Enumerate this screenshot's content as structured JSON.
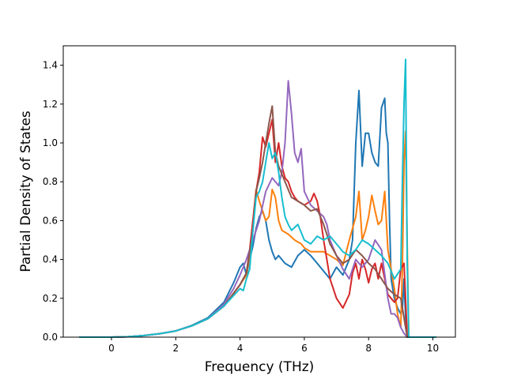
{
  "chart_data": {
    "type": "line",
    "title": "",
    "xlabel": "Frequency (THz)",
    "ylabel": "Partial Density of States",
    "xlim": [
      -1.5,
      10.7
    ],
    "ylim": [
      0.0,
      1.5
    ],
    "xticks": [
      0,
      2,
      4,
      6,
      8,
      10
    ],
    "yticks": [
      0.0,
      0.2,
      0.4,
      0.6,
      0.8,
      1.0,
      1.2,
      1.4
    ],
    "xtick_labels": [
      "0",
      "2",
      "4",
      "6",
      "8",
      "10"
    ],
    "ytick_labels": [
      "0.0",
      "0.2",
      "0.4",
      "0.6",
      "0.8",
      "1.0",
      "1.2",
      "1.4"
    ],
    "grid": false,
    "legend": "none",
    "series": [
      {
        "color": "#1f77b4",
        "points": [
          [
            -1,
            0
          ],
          [
            0,
            0
          ],
          [
            0.5,
            0.002
          ],
          [
            1,
            0.008
          ],
          [
            1.5,
            0.018
          ],
          [
            2,
            0.032
          ],
          [
            2.5,
            0.06
          ],
          [
            3,
            0.1
          ],
          [
            3.5,
            0.18
          ],
          [
            3.8,
            0.28
          ],
          [
            4,
            0.36
          ],
          [
            4.1,
            0.38
          ],
          [
            4.2,
            0.32
          ],
          [
            4.3,
            0.4
          ],
          [
            4.4,
            0.47
          ],
          [
            4.5,
            0.56
          ],
          [
            4.6,
            0.62
          ],
          [
            4.7,
            0.65
          ],
          [
            4.8,
            0.6
          ],
          [
            4.9,
            0.5
          ],
          [
            5,
            0.44
          ],
          [
            5.1,
            0.4
          ],
          [
            5.2,
            0.42
          ],
          [
            5.4,
            0.38
          ],
          [
            5.6,
            0.36
          ],
          [
            5.8,
            0.42
          ],
          [
            6,
            0.45
          ],
          [
            6.2,
            0.42
          ],
          [
            6.4,
            0.38
          ],
          [
            6.6,
            0.34
          ],
          [
            6.8,
            0.3
          ],
          [
            7,
            0.36
          ],
          [
            7.2,
            0.32
          ],
          [
            7.4,
            0.4
          ],
          [
            7.5,
            0.5
          ],
          [
            7.6,
            1.0
          ],
          [
            7.7,
            1.27
          ],
          [
            7.8,
            0.88
          ],
          [
            7.9,
            1.05
          ],
          [
            8,
            1.05
          ],
          [
            8.1,
            0.95
          ],
          [
            8.2,
            0.9
          ],
          [
            8.3,
            0.88
          ],
          [
            8.4,
            1.18
          ],
          [
            8.5,
            1.23
          ],
          [
            8.55,
            1.05
          ],
          [
            8.6,
            1.0
          ],
          [
            8.65,
            0.6
          ],
          [
            8.7,
            0.3
          ],
          [
            8.8,
            0.2
          ],
          [
            8.9,
            0.15
          ],
          [
            9,
            0.12
          ],
          [
            9.05,
            0.14
          ],
          [
            9.1,
            0.3
          ],
          [
            9.15,
            0.1
          ],
          [
            9.2,
            0
          ],
          [
            10.1,
            0
          ]
        ]
      },
      {
        "color": "#ff7f0e",
        "points": [
          [
            -1,
            0
          ],
          [
            0,
            0
          ],
          [
            0.5,
            0.002
          ],
          [
            1,
            0.008
          ],
          [
            1.5,
            0.018
          ],
          [
            2,
            0.032
          ],
          [
            2.5,
            0.058
          ],
          [
            3,
            0.095
          ],
          [
            3.5,
            0.16
          ],
          [
            4,
            0.27
          ],
          [
            4.2,
            0.32
          ],
          [
            4.3,
            0.42
          ],
          [
            4.4,
            0.6
          ],
          [
            4.5,
            0.76
          ],
          [
            4.6,
            0.7
          ],
          [
            4.7,
            0.65
          ],
          [
            4.8,
            0.6
          ],
          [
            4.9,
            0.62
          ],
          [
            5,
            0.76
          ],
          [
            5.1,
            0.72
          ],
          [
            5.2,
            0.6
          ],
          [
            5.3,
            0.55
          ],
          [
            5.5,
            0.53
          ],
          [
            5.7,
            0.5
          ],
          [
            5.9,
            0.48
          ],
          [
            6,
            0.46
          ],
          [
            6.2,
            0.44
          ],
          [
            6.4,
            0.44
          ],
          [
            6.6,
            0.44
          ],
          [
            6.8,
            0.42
          ],
          [
            7,
            0.4
          ],
          [
            7.2,
            0.37
          ],
          [
            7.4,
            0.5
          ],
          [
            7.6,
            0.62
          ],
          [
            7.7,
            0.75
          ],
          [
            7.8,
            0.5
          ],
          [
            7.9,
            0.55
          ],
          [
            8,
            0.62
          ],
          [
            8.1,
            0.73
          ],
          [
            8.2,
            0.65
          ],
          [
            8.3,
            0.58
          ],
          [
            8.4,
            0.6
          ],
          [
            8.5,
            0.75
          ],
          [
            8.55,
            0.6
          ],
          [
            8.6,
            0.45
          ],
          [
            8.7,
            0.35
          ],
          [
            8.8,
            0.25
          ],
          [
            8.9,
            0.12
          ],
          [
            9,
            0.05
          ],
          [
            9.05,
            0.35
          ],
          [
            9.1,
            0.9
          ],
          [
            9.15,
            1.06
          ],
          [
            9.2,
            0.5
          ],
          [
            9.25,
            0
          ],
          [
            10.1,
            0
          ]
        ]
      },
      {
        "color": "#d62728",
        "points": [
          [
            -1,
            0
          ],
          [
            0,
            0
          ],
          [
            0.5,
            0.002
          ],
          [
            1,
            0.008
          ],
          [
            1.5,
            0.018
          ],
          [
            2,
            0.032
          ],
          [
            2.5,
            0.058
          ],
          [
            3,
            0.095
          ],
          [
            3.5,
            0.16
          ],
          [
            4,
            0.27
          ],
          [
            4.2,
            0.33
          ],
          [
            4.3,
            0.45
          ],
          [
            4.4,
            0.6
          ],
          [
            4.5,
            0.75
          ],
          [
            4.6,
            0.85
          ],
          [
            4.7,
            1.03
          ],
          [
            4.8,
            0.98
          ],
          [
            4.9,
            1.05
          ],
          [
            5,
            1.12
          ],
          [
            5.1,
            0.9
          ],
          [
            5.2,
            1.0
          ],
          [
            5.3,
            0.88
          ],
          [
            5.4,
            0.82
          ],
          [
            5.5,
            0.8
          ],
          [
            5.6,
            0.75
          ],
          [
            5.7,
            0.72
          ],
          [
            5.8,
            0.7
          ],
          [
            6,
            0.68
          ],
          [
            6.2,
            0.7
          ],
          [
            6.3,
            0.74
          ],
          [
            6.4,
            0.7
          ],
          [
            6.5,
            0.62
          ],
          [
            6.6,
            0.5
          ],
          [
            6.7,
            0.4
          ],
          [
            6.8,
            0.3
          ],
          [
            7,
            0.2
          ],
          [
            7.2,
            0.15
          ],
          [
            7.4,
            0.22
          ],
          [
            7.5,
            0.33
          ],
          [
            7.6,
            0.38
          ],
          [
            7.7,
            0.3
          ],
          [
            7.8,
            0.4
          ],
          [
            7.9,
            0.35
          ],
          [
            8,
            0.28
          ],
          [
            8.1,
            0.35
          ],
          [
            8.2,
            0.38
          ],
          [
            8.3,
            0.3
          ],
          [
            8.4,
            0.38
          ],
          [
            8.5,
            0.3
          ],
          [
            8.6,
            0.22
          ],
          [
            8.7,
            0.2
          ],
          [
            8.8,
            0.18
          ],
          [
            8.9,
            0.2
          ],
          [
            9,
            0.35
          ],
          [
            9.1,
            0.38
          ],
          [
            9.15,
            0.2
          ],
          [
            9.2,
            0
          ],
          [
            10.1,
            0
          ]
        ]
      },
      {
        "color": "#9467bd",
        "points": [
          [
            -1,
            0
          ],
          [
            0,
            0
          ],
          [
            0.5,
            0.002
          ],
          [
            1,
            0.008
          ],
          [
            1.5,
            0.018
          ],
          [
            2,
            0.032
          ],
          [
            2.5,
            0.058
          ],
          [
            3,
            0.095
          ],
          [
            3.5,
            0.17
          ],
          [
            3.8,
            0.25
          ],
          [
            4,
            0.32
          ],
          [
            4.2,
            0.4
          ],
          [
            4.4,
            0.5
          ],
          [
            4.6,
            0.6
          ],
          [
            4.8,
            0.75
          ],
          [
            5,
            0.82
          ],
          [
            5.2,
            0.78
          ],
          [
            5.3,
            0.85
          ],
          [
            5.4,
            1.0
          ],
          [
            5.5,
            1.32
          ],
          [
            5.6,
            1.15
          ],
          [
            5.7,
            0.95
          ],
          [
            5.8,
            0.9
          ],
          [
            5.9,
            0.97
          ],
          [
            6,
            0.75
          ],
          [
            6.2,
            0.68
          ],
          [
            6.4,
            0.65
          ],
          [
            6.6,
            0.62
          ],
          [
            6.7,
            0.58
          ],
          [
            6.8,
            0.5
          ],
          [
            7,
            0.42
          ],
          [
            7.2,
            0.35
          ],
          [
            7.4,
            0.3
          ],
          [
            7.6,
            0.4
          ],
          [
            7.8,
            0.36
          ],
          [
            8,
            0.4
          ],
          [
            8.2,
            0.5
          ],
          [
            8.4,
            0.45
          ],
          [
            8.6,
            0.2
          ],
          [
            8.7,
            0.12
          ],
          [
            8.8,
            0.12
          ],
          [
            8.9,
            0.1
          ],
          [
            9,
            0.05
          ],
          [
            9.1,
            0.02
          ],
          [
            9.2,
            0
          ],
          [
            10.1,
            0
          ]
        ]
      },
      {
        "color": "#8c564b",
        "points": [
          [
            -1,
            0
          ],
          [
            0,
            0
          ],
          [
            0.5,
            0.002
          ],
          [
            1,
            0.008
          ],
          [
            1.5,
            0.018
          ],
          [
            2,
            0.032
          ],
          [
            2.5,
            0.058
          ],
          [
            3,
            0.095
          ],
          [
            3.5,
            0.16
          ],
          [
            4,
            0.27
          ],
          [
            4.2,
            0.33
          ],
          [
            4.4,
            0.55
          ],
          [
            4.5,
            0.75
          ],
          [
            4.6,
            0.82
          ],
          [
            4.7,
            0.9
          ],
          [
            4.8,
            1.0
          ],
          [
            4.9,
            1.1
          ],
          [
            5,
            1.19
          ],
          [
            5.1,
            0.95
          ],
          [
            5.2,
            0.88
          ],
          [
            5.4,
            0.8
          ],
          [
            5.6,
            0.72
          ],
          [
            5.8,
            0.7
          ],
          [
            6,
            0.68
          ],
          [
            6.2,
            0.65
          ],
          [
            6.4,
            0.66
          ],
          [
            6.6,
            0.58
          ],
          [
            6.8,
            0.48
          ],
          [
            7,
            0.42
          ],
          [
            7.2,
            0.38
          ],
          [
            7.4,
            0.4
          ],
          [
            7.6,
            0.45
          ],
          [
            7.8,
            0.42
          ],
          [
            8,
            0.38
          ],
          [
            8.2,
            0.35
          ],
          [
            8.4,
            0.3
          ],
          [
            8.6,
            0.25
          ],
          [
            8.8,
            0.22
          ],
          [
            9,
            0.2
          ],
          [
            9.1,
            0.1
          ],
          [
            9.2,
            0
          ],
          [
            10.1,
            0
          ]
        ]
      },
      {
        "color": "#17becf",
        "points": [
          [
            -1,
            0
          ],
          [
            0,
            0
          ],
          [
            0.5,
            0.002
          ],
          [
            1,
            0.008
          ],
          [
            1.5,
            0.018
          ],
          [
            2,
            0.032
          ],
          [
            2.5,
            0.058
          ],
          [
            3,
            0.095
          ],
          [
            3.5,
            0.16
          ],
          [
            4,
            0.25
          ],
          [
            4.1,
            0.24
          ],
          [
            4.2,
            0.3
          ],
          [
            4.3,
            0.35
          ],
          [
            4.4,
            0.55
          ],
          [
            4.5,
            0.72
          ],
          [
            4.6,
            0.75
          ],
          [
            4.7,
            0.8
          ],
          [
            4.8,
            0.9
          ],
          [
            4.9,
            1.0
          ],
          [
            5,
            0.92
          ],
          [
            5.1,
            0.95
          ],
          [
            5.2,
            0.85
          ],
          [
            5.3,
            0.72
          ],
          [
            5.4,
            0.62
          ],
          [
            5.5,
            0.58
          ],
          [
            5.6,
            0.55
          ],
          [
            5.8,
            0.58
          ],
          [
            6,
            0.5
          ],
          [
            6.2,
            0.48
          ],
          [
            6.4,
            0.52
          ],
          [
            6.6,
            0.5
          ],
          [
            6.8,
            0.52
          ],
          [
            7,
            0.48
          ],
          [
            7.2,
            0.44
          ],
          [
            7.4,
            0.42
          ],
          [
            7.6,
            0.45
          ],
          [
            7.8,
            0.5
          ],
          [
            8,
            0.48
          ],
          [
            8.2,
            0.45
          ],
          [
            8.4,
            0.42
          ],
          [
            8.6,
            0.38
          ],
          [
            8.8,
            0.3
          ],
          [
            9,
            0.35
          ],
          [
            9.05,
            0.8
          ],
          [
            9.1,
            1.2
          ],
          [
            9.15,
            1.43
          ],
          [
            9.2,
            0.4
          ],
          [
            9.25,
            0
          ],
          [
            10.1,
            0
          ]
        ]
      }
    ]
  }
}
